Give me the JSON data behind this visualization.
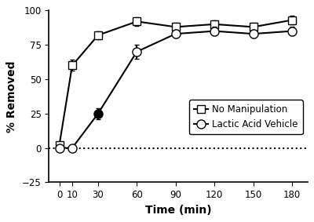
{
  "time": [
    0,
    10,
    30,
    60,
    90,
    120,
    150,
    180
  ],
  "no_manip_y": [
    2,
    60,
    82,
    92,
    88,
    90,
    88,
    93
  ],
  "no_manip_err": [
    1,
    4,
    3,
    3,
    3,
    3,
    3,
    3
  ],
  "lactic_y": [
    0,
    0,
    25,
    70,
    83,
    85,
    83,
    85
  ],
  "lactic_err": [
    1,
    2,
    4,
    5,
    3,
    3,
    3,
    3
  ],
  "lactic_filled_idx": 2,
  "xlabel": "Time (min)",
  "ylabel": "% Removed",
  "ylim": [
    -25,
    100
  ],
  "yticks": [
    -25,
    0,
    25,
    50,
    75,
    100
  ],
  "xticks": [
    0,
    10,
    30,
    60,
    90,
    120,
    150,
    180
  ],
  "legend_labels": [
    "No Manipulation",
    "Lactic Acid Vehicle"
  ],
  "background_color": "white"
}
